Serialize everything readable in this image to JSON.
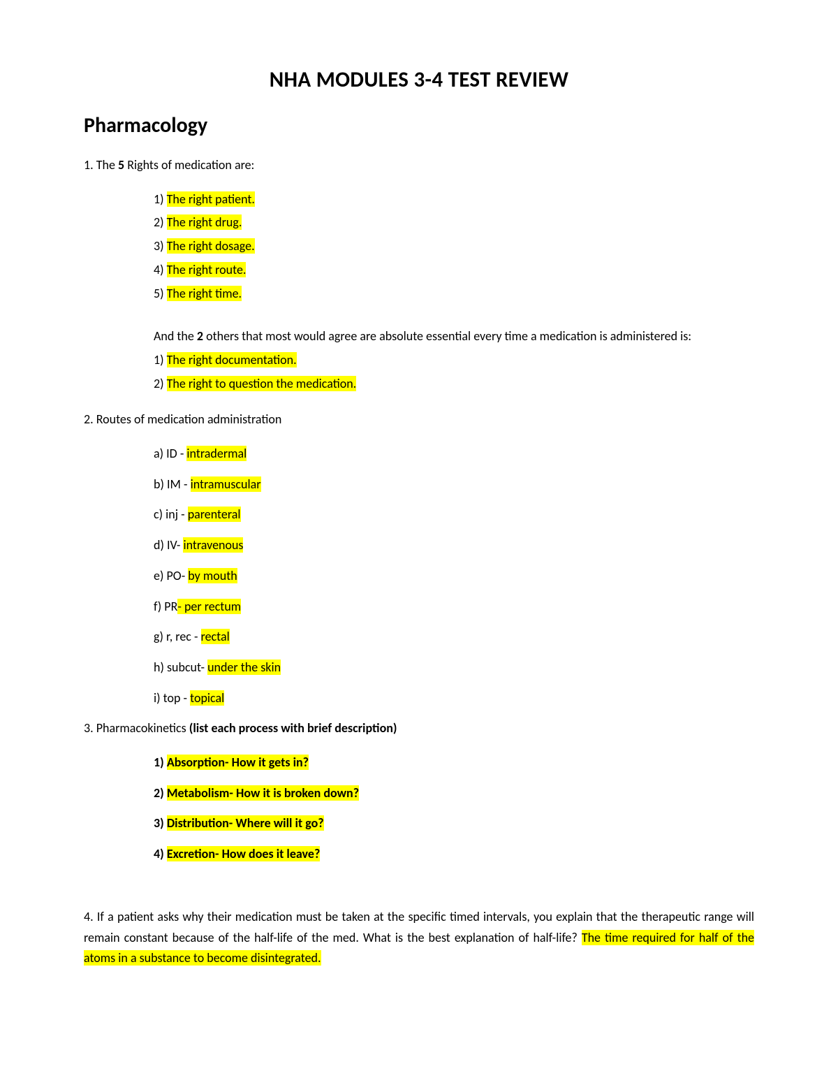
{
  "colors": {
    "highlight": "#ffff00",
    "text": "#000000",
    "background": "#ffffff"
  },
  "typography": {
    "title_fontsize": 31,
    "subtitle_fontsize": 30,
    "body_fontsize": 18,
    "font_family": "Calibri"
  },
  "title": "NHA MODULES 3-4 TEST REVIEW",
  "subtitle": "Pharmacology",
  "q1": {
    "prompt_num": "1.",
    "prompt_text_a": " The ",
    "prompt_bold_b": "5",
    "prompt_text_c": " Rights of medication are:",
    "items": [
      {
        "num": "1) ",
        "hl": "The right patient."
      },
      {
        "num": "2) ",
        "hl": "The right drug."
      },
      {
        "num": "3) ",
        "hl": "The right dosage."
      },
      {
        "num": "4) ",
        "hl": "The right route."
      },
      {
        "num": "5) ",
        "hl": "The right time."
      }
    ],
    "extra_a": "And the ",
    "extra_bold": "2",
    "extra_b": " others that most would agree are absolute essential every time a medication is administered is:",
    "extra_items": [
      {
        "num": "1) ",
        "hl": "The right documentation."
      },
      {
        "num": "2) ",
        "hl": "The right to question the medication."
      }
    ]
  },
  "q2": {
    "prompt_num": "2.",
    "prompt_text": " Routes of medication administration",
    "items": [
      {
        "pre": "a) ID - ",
        "hl": "intradermal"
      },
      {
        "pre": "b) IM - ",
        "hl": "intramuscular"
      },
      {
        "pre": "c) inj - ",
        "hl": "parenteral"
      },
      {
        "pre": "d) IV- ",
        "hl": "intravenous"
      },
      {
        "pre": "e) PO- ",
        "hl": "by mouth"
      },
      {
        "pre": "f) PR",
        "hl": "- per rectum"
      },
      {
        "pre": "g) r, rec - ",
        "hl": "rectal"
      },
      {
        "pre": "h) subcut- ",
        "hl": "under the skin"
      },
      {
        "pre": "i) top - ",
        "hl": "topical"
      }
    ]
  },
  "q3": {
    "prompt_num": "3.",
    "prompt_text_a": " Pharmacokinetics ",
    "prompt_bold": "(list each process with brief description)",
    "items": [
      {
        "num": "1) ",
        "hl": "Absorption- How it gets in?"
      },
      {
        "num": "2) ",
        "hl": "Metabolism- How it is broken down?"
      },
      {
        "num": "3) ",
        "hl": "Distribution- Where will it go?"
      },
      {
        "num": "4) ",
        "hl": "Excretion- How does it leave?"
      }
    ]
  },
  "q4": {
    "text_pre": "4. If a patient asks why their medication must be taken at the specific timed intervals, you explain that the therapeutic range will remain constant because of the half-life of the med. What is the best explanation of half-life?  ",
    "hl": "The time required for half of the atoms in a substance to become disintegrated."
  }
}
